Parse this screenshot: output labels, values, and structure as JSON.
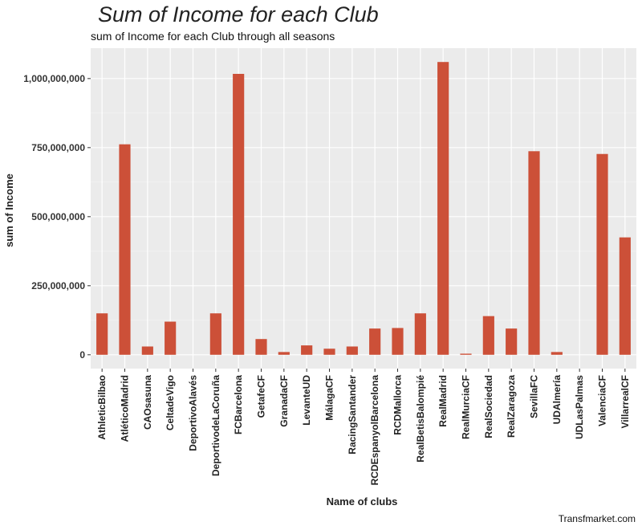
{
  "chart_data": {
    "type": "bar",
    "title": "Sum of Income for each Club",
    "subtitle": "sum of Income for each Club through all seasons",
    "xlabel": "Name of clubs",
    "ylabel": "sum of Income",
    "caption": "Transfmarket.com",
    "ylim": [
      -50000000,
      1110000000
    ],
    "yticks": [
      0,
      250000000,
      500000000,
      750000000,
      1000000000
    ],
    "ytick_labels": [
      "0",
      "250,000,000",
      "500,000,000",
      "750,000,000",
      "1,000,000,000"
    ],
    "grid": true,
    "legend": "none",
    "bar_color": "#CC5038",
    "panel_background": "#EBEBEB",
    "categories": [
      "AthleticBilbao",
      "AtléticoMadrid",
      "CAOsasuna",
      "CeltadeVigo",
      "DeportivoAlavés",
      "DeportivodeLaCoruña",
      "FCBarcelona",
      "GetafeCF",
      "GranadaCF",
      "LevanteUD",
      "MálagaCF",
      "RacingSantander",
      "RCDEspanyolBarcelona",
      "RCDMallorca",
      "RealBetisBalompié",
      "RealMadrid",
      "RealMurciaCF",
      "RealSociedad",
      "RealZaragoza",
      "SevillaFC",
      "UDAlmería",
      "UDLasPalmas",
      "ValenciaCF",
      "VillarrealCF"
    ],
    "values": [
      150000000,
      762000000,
      30000000,
      120000000,
      0,
      150000000,
      1017000000,
      57000000,
      10000000,
      34000000,
      22000000,
      30000000,
      95000000,
      97000000,
      150000000,
      1060000000,
      4000000,
      140000000,
      95000000,
      737000000,
      10000000,
      0,
      727000000,
      425000000
    ]
  }
}
